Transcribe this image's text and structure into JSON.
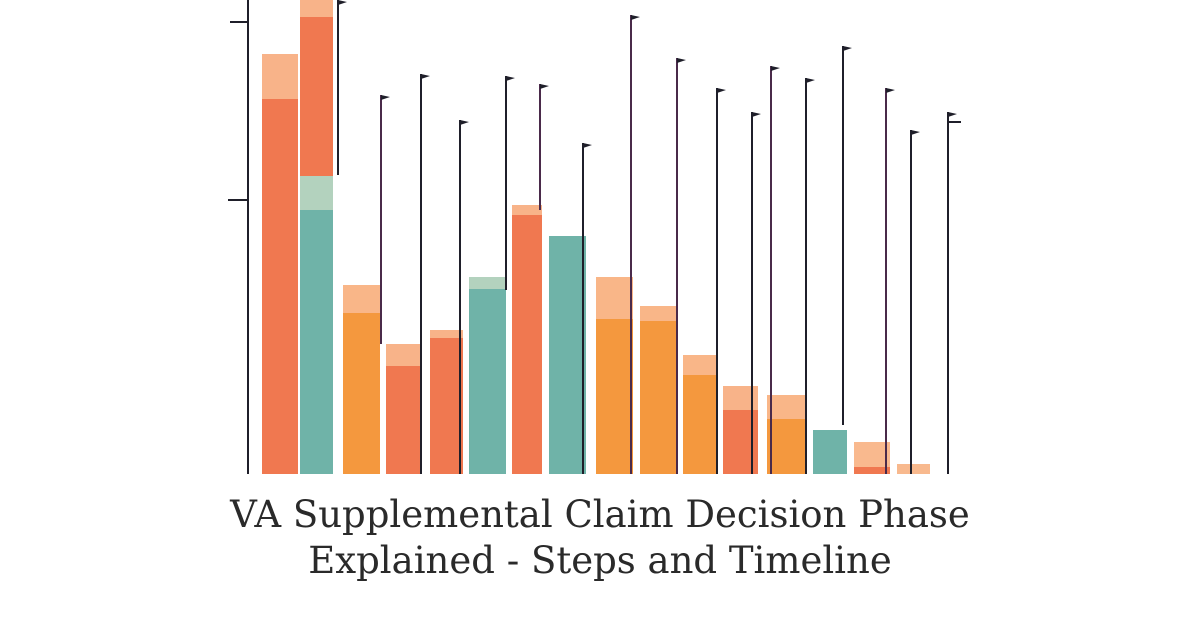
{
  "headline": {
    "line1": "VA Supplemental Claim Decision Phase",
    "line2": "Explained - Steps and Timeline"
  },
  "colors": {
    "red_orange": "#f07850",
    "orange": "#f4983e",
    "teal": "#6fb3a8",
    "peach": "#f8b98e",
    "sage": "#b8d5c0",
    "stem": "#1f1f2a",
    "stem_purple": "#4a2a4a"
  }
}
